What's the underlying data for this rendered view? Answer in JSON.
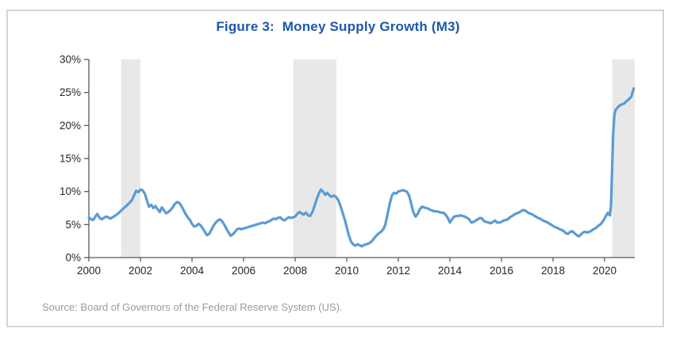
{
  "figure": {
    "title": "Figure 3:  Money Supply Growth (M3)",
    "source": "Source: Board of Governors of the Federal Reserve System (US)."
  },
  "chart_data": {
    "type": "line",
    "title": "Figure 3:  Money Supply Growth (M3)",
    "xlabel": "",
    "ylabel": "",
    "xlim": [
      2000,
      2021.17
    ],
    "ylim": [
      0,
      30
    ],
    "grid": false,
    "legend": "none",
    "x_ticks": [
      {
        "value": 2000,
        "label": "2000"
      },
      {
        "value": 2002,
        "label": "2002"
      },
      {
        "value": 2004,
        "label": "2004"
      },
      {
        "value": 2006,
        "label": "2006"
      },
      {
        "value": 2008,
        "label": "2008"
      },
      {
        "value": 2010,
        "label": "2010"
      },
      {
        "value": 2012,
        "label": "2012"
      },
      {
        "value": 2014,
        "label": "2014"
      },
      {
        "value": 2016,
        "label": "2016"
      },
      {
        "value": 2018,
        "label": "2018"
      },
      {
        "value": 2020,
        "label": "2020"
      }
    ],
    "y_ticks": [
      {
        "value": 0,
        "label": "0%"
      },
      {
        "value": 5,
        "label": "5%"
      },
      {
        "value": 10,
        "label": "10%"
      },
      {
        "value": 15,
        "label": "15%"
      },
      {
        "value": 20,
        "label": "20%"
      },
      {
        "value": 25,
        "label": "25%"
      },
      {
        "value": 30,
        "label": "30%"
      }
    ],
    "recession_bands": [
      [
        2001.25,
        2002.0
      ],
      [
        2007.92,
        2009.6
      ],
      [
        2020.3,
        2021.17
      ]
    ],
    "colors": {
      "line": "#5b9bd5",
      "band": "#e8e8e8",
      "axis": "#595959",
      "tick_text": "#262626",
      "title": "#1c58ac",
      "source_text": "#9b9b9b",
      "border": "#d8d4cb"
    },
    "series": [
      {
        "name": "M3",
        "points": [
          [
            2000.0,
            6.1
          ],
          [
            2000.08,
            5.8
          ],
          [
            2000.17,
            5.7
          ],
          [
            2000.25,
            6.2
          ],
          [
            2000.33,
            6.6
          ],
          [
            2000.42,
            6.0
          ],
          [
            2000.5,
            5.8
          ],
          [
            2000.58,
            6.0
          ],
          [
            2000.67,
            6.2
          ],
          [
            2000.75,
            6.1
          ],
          [
            2000.83,
            5.9
          ],
          [
            2000.92,
            6.1
          ],
          [
            2001.0,
            6.3
          ],
          [
            2001.08,
            6.5
          ],
          [
            2001.17,
            6.8
          ],
          [
            2001.25,
            7.1
          ],
          [
            2001.33,
            7.4
          ],
          [
            2001.42,
            7.7
          ],
          [
            2001.5,
            8.0
          ],
          [
            2001.58,
            8.3
          ],
          [
            2001.67,
            8.7
          ],
          [
            2001.75,
            9.4
          ],
          [
            2001.83,
            10.1
          ],
          [
            2001.92,
            9.9
          ],
          [
            2002.0,
            10.3
          ],
          [
            2002.08,
            10.2
          ],
          [
            2002.17,
            9.7
          ],
          [
            2002.25,
            8.7
          ],
          [
            2002.33,
            7.7
          ],
          [
            2002.42,
            8.0
          ],
          [
            2002.5,
            7.5
          ],
          [
            2002.58,
            7.8
          ],
          [
            2002.67,
            7.3
          ],
          [
            2002.75,
            6.9
          ],
          [
            2002.83,
            7.6
          ],
          [
            2002.92,
            7.1
          ],
          [
            2003.0,
            6.7
          ],
          [
            2003.08,
            6.9
          ],
          [
            2003.17,
            7.2
          ],
          [
            2003.25,
            7.6
          ],
          [
            2003.33,
            8.1
          ],
          [
            2003.42,
            8.4
          ],
          [
            2003.5,
            8.3
          ],
          [
            2003.58,
            7.9
          ],
          [
            2003.67,
            7.2
          ],
          [
            2003.75,
            6.6
          ],
          [
            2003.83,
            6.1
          ],
          [
            2003.92,
            5.7
          ],
          [
            2004.0,
            5.1
          ],
          [
            2004.08,
            4.7
          ],
          [
            2004.17,
            4.8
          ],
          [
            2004.25,
            5.1
          ],
          [
            2004.33,
            4.9
          ],
          [
            2004.42,
            4.4
          ],
          [
            2004.5,
            3.9
          ],
          [
            2004.58,
            3.4
          ],
          [
            2004.67,
            3.6
          ],
          [
            2004.75,
            4.2
          ],
          [
            2004.83,
            4.8
          ],
          [
            2004.92,
            5.3
          ],
          [
            2005.0,
            5.6
          ],
          [
            2005.08,
            5.8
          ],
          [
            2005.17,
            5.5
          ],
          [
            2005.25,
            5.0
          ],
          [
            2005.33,
            4.4
          ],
          [
            2005.42,
            3.8
          ],
          [
            2005.5,
            3.3
          ],
          [
            2005.58,
            3.5
          ],
          [
            2005.67,
            3.9
          ],
          [
            2005.75,
            4.3
          ],
          [
            2005.83,
            4.4
          ],
          [
            2005.92,
            4.3
          ],
          [
            2006.0,
            4.4
          ],
          [
            2006.08,
            4.5
          ],
          [
            2006.17,
            4.6
          ],
          [
            2006.25,
            4.7
          ],
          [
            2006.33,
            4.8
          ],
          [
            2006.42,
            4.9
          ],
          [
            2006.5,
            5.0
          ],
          [
            2006.58,
            5.1
          ],
          [
            2006.67,
            5.2
          ],
          [
            2006.75,
            5.3
          ],
          [
            2006.83,
            5.2
          ],
          [
            2006.92,
            5.4
          ],
          [
            2007.0,
            5.5
          ],
          [
            2007.08,
            5.7
          ],
          [
            2007.17,
            5.9
          ],
          [
            2007.25,
            5.8
          ],
          [
            2007.33,
            6.0
          ],
          [
            2007.42,
            6.1
          ],
          [
            2007.5,
            5.8
          ],
          [
            2007.58,
            5.6
          ],
          [
            2007.67,
            5.9
          ],
          [
            2007.75,
            6.1
          ],
          [
            2007.83,
            6.0
          ],
          [
            2007.92,
            6.1
          ],
          [
            2008.0,
            6.2
          ],
          [
            2008.08,
            6.6
          ],
          [
            2008.17,
            6.9
          ],
          [
            2008.25,
            6.7
          ],
          [
            2008.33,
            6.5
          ],
          [
            2008.42,
            6.8
          ],
          [
            2008.5,
            6.4
          ],
          [
            2008.58,
            6.3
          ],
          [
            2008.67,
            6.9
          ],
          [
            2008.75,
            7.8
          ],
          [
            2008.83,
            8.8
          ],
          [
            2008.92,
            9.7
          ],
          [
            2009.0,
            10.3
          ],
          [
            2009.08,
            10.0
          ],
          [
            2009.17,
            9.5
          ],
          [
            2009.25,
            9.8
          ],
          [
            2009.33,
            9.4
          ],
          [
            2009.42,
            9.2
          ],
          [
            2009.5,
            9.4
          ],
          [
            2009.58,
            9.2
          ],
          [
            2009.67,
            8.7
          ],
          [
            2009.75,
            7.9
          ],
          [
            2009.83,
            6.9
          ],
          [
            2009.92,
            5.8
          ],
          [
            2010.0,
            4.6
          ],
          [
            2010.08,
            3.4
          ],
          [
            2010.17,
            2.4
          ],
          [
            2010.25,
            2.0
          ],
          [
            2010.33,
            1.8
          ],
          [
            2010.42,
            2.0
          ],
          [
            2010.5,
            1.9
          ],
          [
            2010.58,
            1.7
          ],
          [
            2010.67,
            1.9
          ],
          [
            2010.75,
            2.0
          ],
          [
            2010.83,
            2.1
          ],
          [
            2010.92,
            2.3
          ],
          [
            2011.0,
            2.6
          ],
          [
            2011.08,
            3.0
          ],
          [
            2011.17,
            3.4
          ],
          [
            2011.25,
            3.7
          ],
          [
            2011.33,
            3.9
          ],
          [
            2011.42,
            4.3
          ],
          [
            2011.5,
            5.0
          ],
          [
            2011.58,
            6.5
          ],
          [
            2011.67,
            8.2
          ],
          [
            2011.75,
            9.4
          ],
          [
            2011.83,
            9.8
          ],
          [
            2011.92,
            9.7
          ],
          [
            2012.0,
            10.0
          ],
          [
            2012.08,
            10.1
          ],
          [
            2012.17,
            10.2
          ],
          [
            2012.25,
            10.1
          ],
          [
            2012.33,
            10.0
          ],
          [
            2012.42,
            9.4
          ],
          [
            2012.5,
            8.2
          ],
          [
            2012.58,
            6.9
          ],
          [
            2012.67,
            6.2
          ],
          [
            2012.75,
            6.6
          ],
          [
            2012.83,
            7.3
          ],
          [
            2012.92,
            7.7
          ],
          [
            2013.0,
            7.6
          ],
          [
            2013.08,
            7.5
          ],
          [
            2013.17,
            7.4
          ],
          [
            2013.25,
            7.2
          ],
          [
            2013.33,
            7.1
          ],
          [
            2013.42,
            7.0
          ],
          [
            2013.5,
            7.0
          ],
          [
            2013.58,
            6.9
          ],
          [
            2013.67,
            6.8
          ],
          [
            2013.75,
            6.8
          ],
          [
            2013.83,
            6.5
          ],
          [
            2013.92,
            6.0
          ],
          [
            2014.0,
            5.3
          ],
          [
            2014.08,
            5.8
          ],
          [
            2014.17,
            6.2
          ],
          [
            2014.25,
            6.3
          ],
          [
            2014.33,
            6.3
          ],
          [
            2014.42,
            6.4
          ],
          [
            2014.5,
            6.3
          ],
          [
            2014.58,
            6.2
          ],
          [
            2014.67,
            6.0
          ],
          [
            2014.75,
            5.8
          ],
          [
            2014.83,
            5.3
          ],
          [
            2014.92,
            5.4
          ],
          [
            2015.0,
            5.6
          ],
          [
            2015.08,
            5.8
          ],
          [
            2015.17,
            6.0
          ],
          [
            2015.25,
            5.9
          ],
          [
            2015.33,
            5.5
          ],
          [
            2015.42,
            5.4
          ],
          [
            2015.5,
            5.3
          ],
          [
            2015.58,
            5.2
          ],
          [
            2015.67,
            5.4
          ],
          [
            2015.75,
            5.6
          ],
          [
            2015.83,
            5.3
          ],
          [
            2015.92,
            5.3
          ],
          [
            2016.0,
            5.4
          ],
          [
            2016.08,
            5.6
          ],
          [
            2016.17,
            5.7
          ],
          [
            2016.25,
            5.8
          ],
          [
            2016.33,
            6.1
          ],
          [
            2016.42,
            6.3
          ],
          [
            2016.5,
            6.5
          ],
          [
            2016.58,
            6.7
          ],
          [
            2016.67,
            6.8
          ],
          [
            2016.75,
            7.0
          ],
          [
            2016.83,
            7.2
          ],
          [
            2016.92,
            7.1
          ],
          [
            2017.0,
            6.9
          ],
          [
            2017.08,
            6.7
          ],
          [
            2017.17,
            6.6
          ],
          [
            2017.25,
            6.4
          ],
          [
            2017.33,
            6.2
          ],
          [
            2017.42,
            6.0
          ],
          [
            2017.5,
            5.9
          ],
          [
            2017.58,
            5.7
          ],
          [
            2017.67,
            5.5
          ],
          [
            2017.75,
            5.4
          ],
          [
            2017.83,
            5.2
          ],
          [
            2017.92,
            5.0
          ],
          [
            2018.0,
            4.8
          ],
          [
            2018.08,
            4.6
          ],
          [
            2018.17,
            4.5
          ],
          [
            2018.25,
            4.3
          ],
          [
            2018.33,
            4.2
          ],
          [
            2018.42,
            4.0
          ],
          [
            2018.5,
            3.7
          ],
          [
            2018.58,
            3.6
          ],
          [
            2018.67,
            3.9
          ],
          [
            2018.75,
            4.0
          ],
          [
            2018.83,
            3.7
          ],
          [
            2018.92,
            3.4
          ],
          [
            2019.0,
            3.2
          ],
          [
            2019.08,
            3.5
          ],
          [
            2019.17,
            3.8
          ],
          [
            2019.25,
            3.9
          ],
          [
            2019.33,
            3.8
          ],
          [
            2019.42,
            3.9
          ],
          [
            2019.5,
            4.1
          ],
          [
            2019.58,
            4.3
          ],
          [
            2019.67,
            4.5
          ],
          [
            2019.75,
            4.8
          ],
          [
            2019.83,
            5.0
          ],
          [
            2019.92,
            5.4
          ],
          [
            2020.0,
            5.9
          ],
          [
            2020.08,
            6.5
          ],
          [
            2020.13,
            6.8
          ],
          [
            2020.17,
            6.5
          ],
          [
            2020.21,
            6.4
          ],
          [
            2020.25,
            8.0
          ],
          [
            2020.29,
            13.0
          ],
          [
            2020.33,
            18.5
          ],
          [
            2020.38,
            21.5
          ],
          [
            2020.42,
            22.3
          ],
          [
            2020.5,
            22.7
          ],
          [
            2020.58,
            23.0
          ],
          [
            2020.67,
            23.2
          ],
          [
            2020.75,
            23.3
          ],
          [
            2020.83,
            23.6
          ],
          [
            2020.92,
            23.9
          ],
          [
            2021.0,
            24.2
          ],
          [
            2021.04,
            24.4
          ],
          [
            2021.08,
            25.0
          ],
          [
            2021.13,
            25.6
          ]
        ]
      }
    ]
  }
}
